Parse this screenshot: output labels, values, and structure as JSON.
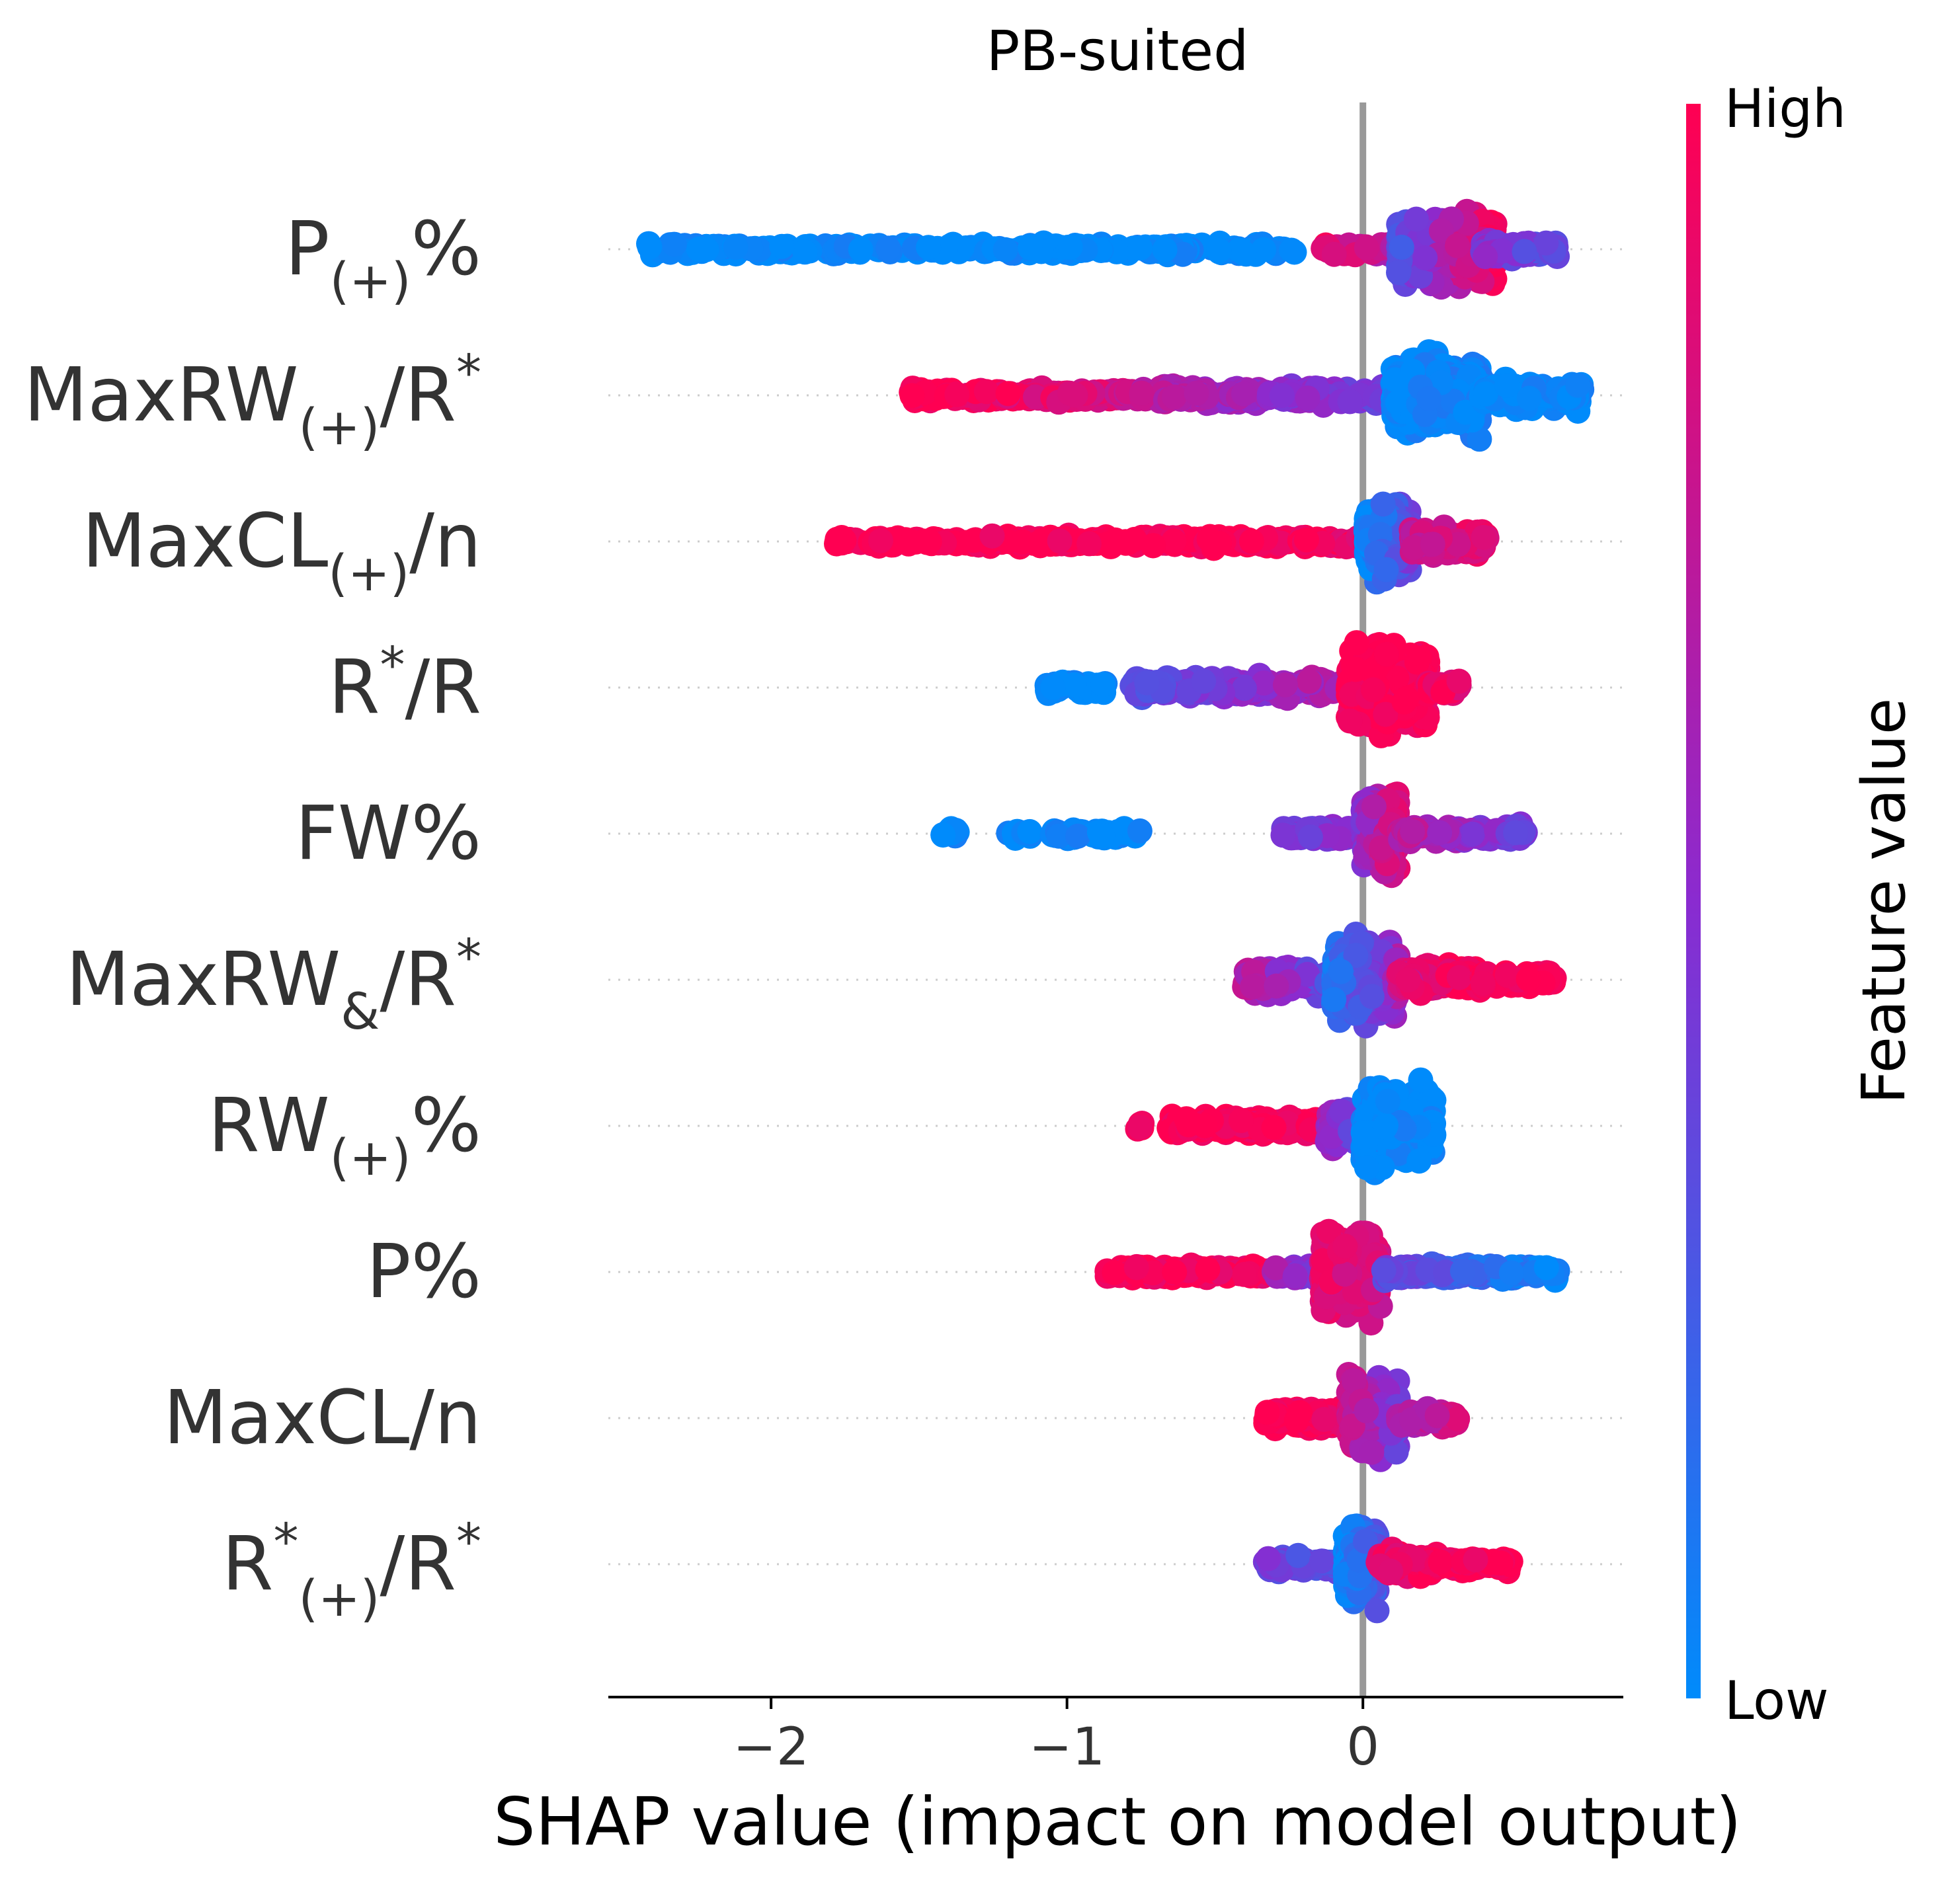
{
  "chart_data": {
    "type": "scatter",
    "subtype": "shap-beeswarm-summary",
    "title": "PB-suited",
    "xlabel": "SHAP value (impact on model output)",
    "xlim": [
      -2.55,
      0.88
    ],
    "xticks": [
      -2,
      -1,
      0
    ],
    "xtick_labels": [
      "−2",
      "−1",
      "0"
    ],
    "zero_line": true,
    "colorbar": {
      "label": "Feature value",
      "high_label": "High",
      "low_label": "Low",
      "low_color": "#008bfb",
      "mid_color": "#8a2bd0",
      "high_color": "#ff0052"
    },
    "features": [
      {
        "base": "P",
        "sub": "(+)",
        "sup": "",
        "tail": "%",
        "segments": [
          {
            "x0": -2.42,
            "x1": -0.23,
            "c0": 0.0,
            "c1": 0.0,
            "n": 260,
            "spread": 0.12
          },
          {
            "x0": -0.14,
            "x1": 0.16,
            "c0": 0.9,
            "c1": 0.6,
            "n": 50,
            "spread": 0.15
          },
          {
            "x0": 0.12,
            "x1": 0.45,
            "c0": 0.3,
            "c1": 1.0,
            "n": 420,
            "spread": 0.75
          },
          {
            "x0": 0.4,
            "x1": 0.66,
            "c0": 0.5,
            "c1": 0.3,
            "n": 90,
            "spread": 0.22
          }
        ]
      },
      {
        "base": "MaxRW",
        "sub": "(+)",
        "sup": "",
        "tail": "/R",
        "tail_sup": "*",
        "segments": [
          {
            "x0": -1.53,
            "x1": -0.75,
            "c0": 1.0,
            "c1": 0.8,
            "n": 200,
            "spread": 0.14
          },
          {
            "x0": -0.75,
            "x1": 0.08,
            "c0": 0.7,
            "c1": 0.4,
            "n": 240,
            "spread": 0.2
          },
          {
            "x0": 0.1,
            "x1": 0.4,
            "c0": 0.0,
            "c1": 0.05,
            "n": 460,
            "spread": 0.8
          },
          {
            "x0": 0.4,
            "x1": 0.74,
            "c0": 0.0,
            "c1": 0.0,
            "n": 160,
            "spread": 0.3
          }
        ]
      },
      {
        "base": "MaxCL",
        "sub": "(+)",
        "sup": "",
        "tail": "/n",
        "segments": [
          {
            "x0": -1.78,
            "x1": -0.22,
            "c0": 1.0,
            "c1": 1.0,
            "n": 300,
            "spread": 0.12
          },
          {
            "x0": -0.22,
            "x1": 0.02,
            "c0": 1.0,
            "c1": 0.9,
            "n": 50,
            "spread": 0.12
          },
          {
            "x0": 0.01,
            "x1": 0.16,
            "c0": 0.0,
            "c1": 0.4,
            "n": 260,
            "spread": 0.8
          },
          {
            "x0": 0.16,
            "x1": 0.42,
            "c0": 0.75,
            "c1": 0.9,
            "n": 140,
            "spread": 0.28
          }
        ]
      },
      {
        "base": "R",
        "sub": "",
        "sup": "*",
        "tail": "/R",
        "segments": [
          {
            "x0": -1.07,
            "x1": -0.87,
            "c0": 0.0,
            "c1": 0.0,
            "n": 40,
            "spread": 0.14
          },
          {
            "x0": -0.78,
            "x1": -0.05,
            "c0": 0.3,
            "c1": 0.7,
            "n": 220,
            "spread": 0.22
          },
          {
            "x0": -0.05,
            "x1": 0.22,
            "c0": 1.0,
            "c1": 0.95,
            "n": 380,
            "spread": 0.85
          },
          {
            "x0": 0.22,
            "x1": 0.34,
            "c0": 0.95,
            "c1": 0.9,
            "n": 40,
            "spread": 0.14
          }
        ]
      },
      {
        "base": "FW",
        "sub": "",
        "sup": "",
        "tail": "%",
        "segments": [
          {
            "x0": -1.42,
            "x1": -1.37,
            "c0": 0.0,
            "c1": 0.0,
            "n": 10,
            "spread": 0.1
          },
          {
            "x0": -1.2,
            "x1": -1.12,
            "c0": 0.0,
            "c1": 0.0,
            "n": 14,
            "spread": 0.1
          },
          {
            "x0": -1.05,
            "x1": -0.75,
            "c0": 0.0,
            "c1": 0.0,
            "n": 40,
            "spread": 0.12
          },
          {
            "x0": -0.27,
            "x1": 0.0,
            "c0": 0.4,
            "c1": 0.5,
            "n": 90,
            "spread": 0.15
          },
          {
            "x0": 0.0,
            "x1": 0.12,
            "c0": 0.5,
            "c1": 0.9,
            "n": 220,
            "spread": 0.85
          },
          {
            "x0": 0.12,
            "x1": 0.55,
            "c0": 0.7,
            "c1": 0.4,
            "n": 130,
            "spread": 0.16
          }
        ]
      },
      {
        "base": "MaxRW",
        "sub": "&",
        "sup": "",
        "tail": "/R",
        "tail_sup": "*",
        "segments": [
          {
            "x0": -0.4,
            "x1": -0.1,
            "c0": 0.7,
            "c1": 0.3,
            "n": 120,
            "spread": 0.3
          },
          {
            "x0": -0.1,
            "x1": 0.12,
            "c0": 0.1,
            "c1": 0.6,
            "n": 400,
            "spread": 0.85
          },
          {
            "x0": 0.12,
            "x1": 0.4,
            "c0": 0.8,
            "c1": 1.0,
            "n": 180,
            "spread": 0.3
          },
          {
            "x0": 0.4,
            "x1": 0.65,
            "c0": 1.0,
            "c1": 1.0,
            "n": 90,
            "spread": 0.16
          }
        ]
      },
      {
        "base": "RW",
        "sub": "(+)",
        "sup": "",
        "tail": "%",
        "segments": [
          {
            "x0": -0.78,
            "x1": -0.74,
            "c0": 1.0,
            "c1": 1.0,
            "n": 6,
            "spread": 0.1
          },
          {
            "x0": -0.66,
            "x1": -0.12,
            "c0": 1.0,
            "c1": 0.95,
            "n": 240,
            "spread": 0.2
          },
          {
            "x0": -0.12,
            "x1": 0.0,
            "c0": 0.6,
            "c1": 0.3,
            "n": 90,
            "spread": 0.4
          },
          {
            "x0": 0.0,
            "x1": 0.24,
            "c0": 0.0,
            "c1": 0.0,
            "n": 300,
            "spread": 0.85
          }
        ]
      },
      {
        "base": "P",
        "sub": "",
        "sup": "",
        "tail": "%",
        "segments": [
          {
            "x0": -0.87,
            "x1": -0.3,
            "c0": 1.0,
            "c1": 0.95,
            "n": 170,
            "spread": 0.14
          },
          {
            "x0": -0.3,
            "x1": -0.04,
            "c0": 0.6,
            "c1": 0.3,
            "n": 80,
            "spread": 0.16
          },
          {
            "x0": -0.14,
            "x1": 0.06,
            "c0": 0.9,
            "c1": 0.8,
            "n": 300,
            "spread": 0.85
          },
          {
            "x0": 0.06,
            "x1": 0.66,
            "c0": 0.4,
            "c1": 0.0,
            "n": 180,
            "spread": 0.16
          }
        ]
      },
      {
        "base": "MaxCL",
        "sub": "",
        "sup": "",
        "tail": "/n",
        "segments": [
          {
            "x0": -0.33,
            "x1": -0.05,
            "c0": 1.0,
            "c1": 0.95,
            "n": 180,
            "spread": 0.22
          },
          {
            "x0": -0.05,
            "x1": 0.12,
            "c0": 0.8,
            "c1": 0.4,
            "n": 280,
            "spread": 0.85
          },
          {
            "x0": 0.12,
            "x1": 0.32,
            "c0": 0.6,
            "c1": 0.8,
            "n": 100,
            "spread": 0.18
          }
        ]
      },
      {
        "base": "R",
        "sub": "(+)",
        "sup": "*",
        "tail": "/R",
        "tail_sup": "*",
        "segments": [
          {
            "x0": -0.33,
            "x1": -0.06,
            "c0": 0.4,
            "c1": 0.3,
            "n": 90,
            "spread": 0.16
          },
          {
            "x0": -0.06,
            "x1": 0.05,
            "c0": 0.0,
            "c1": 0.3,
            "n": 260,
            "spread": 0.85
          },
          {
            "x0": 0.05,
            "x1": 0.25,
            "c0": 0.9,
            "c1": 0.95,
            "n": 130,
            "spread": 0.28
          },
          {
            "x0": 0.25,
            "x1": 0.5,
            "c0": 0.95,
            "c1": 1.0,
            "n": 90,
            "spread": 0.14
          }
        ]
      }
    ]
  }
}
